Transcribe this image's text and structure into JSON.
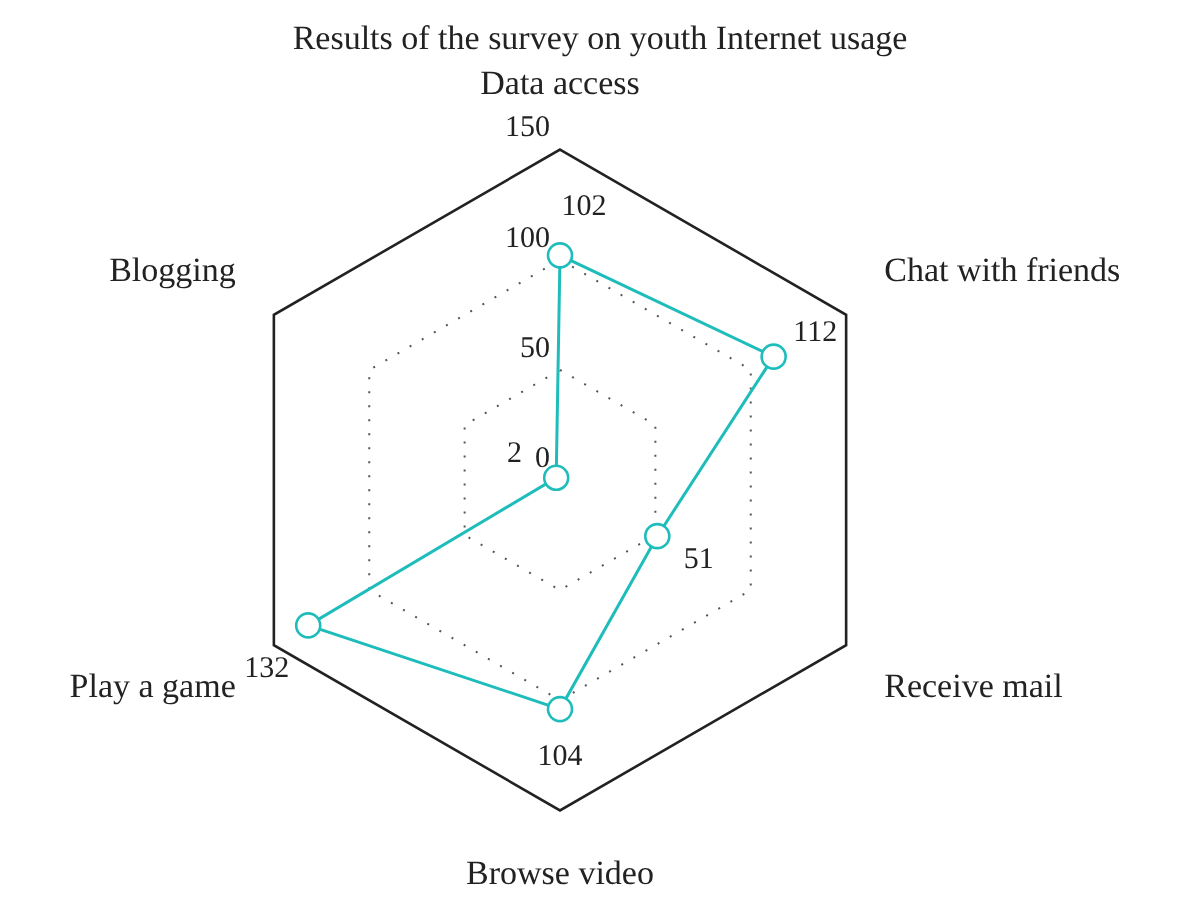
{
  "chart_data": {
    "type": "radar",
    "title": "Results of the survey on youth Internet usage",
    "categories": [
      "Data access",
      "Chat with friends",
      "Receive mail",
      "Browse video",
      "Play a game",
      "Blogging"
    ],
    "series": [
      {
        "color": "#1fbcbc",
        "values": [
          102,
          112,
          51,
          104,
          132,
          2
        ]
      }
    ],
    "ylim": [
      0,
      150
    ],
    "yticks": [
      0,
      50,
      100,
      150
    ],
    "grid": true,
    "legend": false,
    "marker": "circle",
    "data_labels": true
  }
}
